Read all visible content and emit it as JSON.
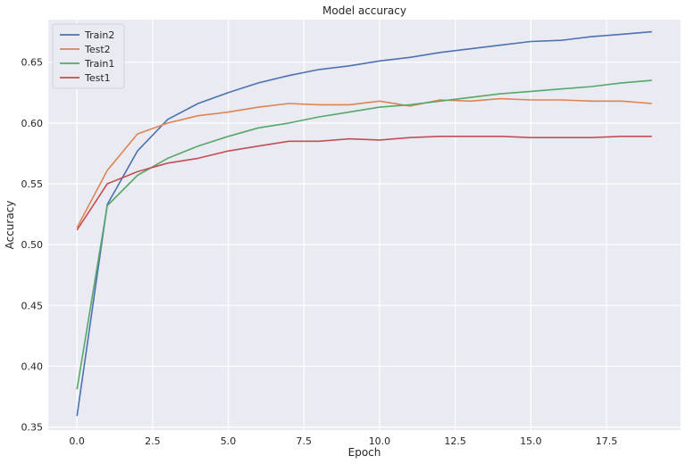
{
  "chart_data": {
    "type": "line",
    "title": "Model accuracy",
    "xlabel": "Epoch",
    "ylabel": "Accuracy",
    "xlim": [
      -0.95,
      19.95
    ],
    "ylim": [
      0.3475,
      0.685
    ],
    "xticks": [
      0.0,
      2.5,
      5.0,
      7.5,
      10.0,
      12.5,
      15.0,
      17.5
    ],
    "xtick_labels": [
      "0.0",
      "2.5",
      "5.0",
      "7.5",
      "10.0",
      "12.5",
      "15.0",
      "17.5"
    ],
    "yticks": [
      0.35,
      0.4,
      0.45,
      0.5,
      0.55,
      0.6,
      0.65
    ],
    "ytick_labels": [
      "0.35",
      "0.40",
      "0.45",
      "0.50",
      "0.55",
      "0.60",
      "0.65"
    ],
    "grid": true,
    "legend_position": "top-left",
    "x": [
      0,
      1,
      2,
      3,
      4,
      5,
      6,
      7,
      8,
      9,
      10,
      11,
      12,
      13,
      14,
      15,
      16,
      17,
      18,
      19
    ],
    "series": [
      {
        "name": "Train2",
        "color": "#4c72b0",
        "values": [
          0.359,
          0.533,
          0.577,
          0.603,
          0.616,
          0.625,
          0.633,
          0.639,
          0.644,
          0.647,
          0.651,
          0.654,
          0.658,
          0.661,
          0.664,
          0.667,
          0.668,
          0.671,
          0.673,
          0.675
        ]
      },
      {
        "name": "Test2",
        "color": "#dd8452",
        "values": [
          0.514,
          0.561,
          0.591,
          0.6,
          0.606,
          0.609,
          0.613,
          0.616,
          0.615,
          0.615,
          0.618,
          0.614,
          0.619,
          0.618,
          0.62,
          0.619,
          0.619,
          0.618,
          0.618,
          0.616
        ]
      },
      {
        "name": "Train1",
        "color": "#55a868",
        "values": [
          0.381,
          0.532,
          0.557,
          0.571,
          0.581,
          0.589,
          0.596,
          0.6,
          0.605,
          0.609,
          0.613,
          0.615,
          0.618,
          0.621,
          0.624,
          0.626,
          0.628,
          0.63,
          0.633,
          0.635
        ]
      },
      {
        "name": "Test1",
        "color": "#c44e52",
        "values": [
          0.512,
          0.55,
          0.56,
          0.567,
          0.571,
          0.577,
          0.581,
          0.585,
          0.585,
          0.587,
          0.586,
          0.588,
          0.589,
          0.589,
          0.589,
          0.588,
          0.588,
          0.588,
          0.589,
          0.589
        ]
      }
    ]
  }
}
